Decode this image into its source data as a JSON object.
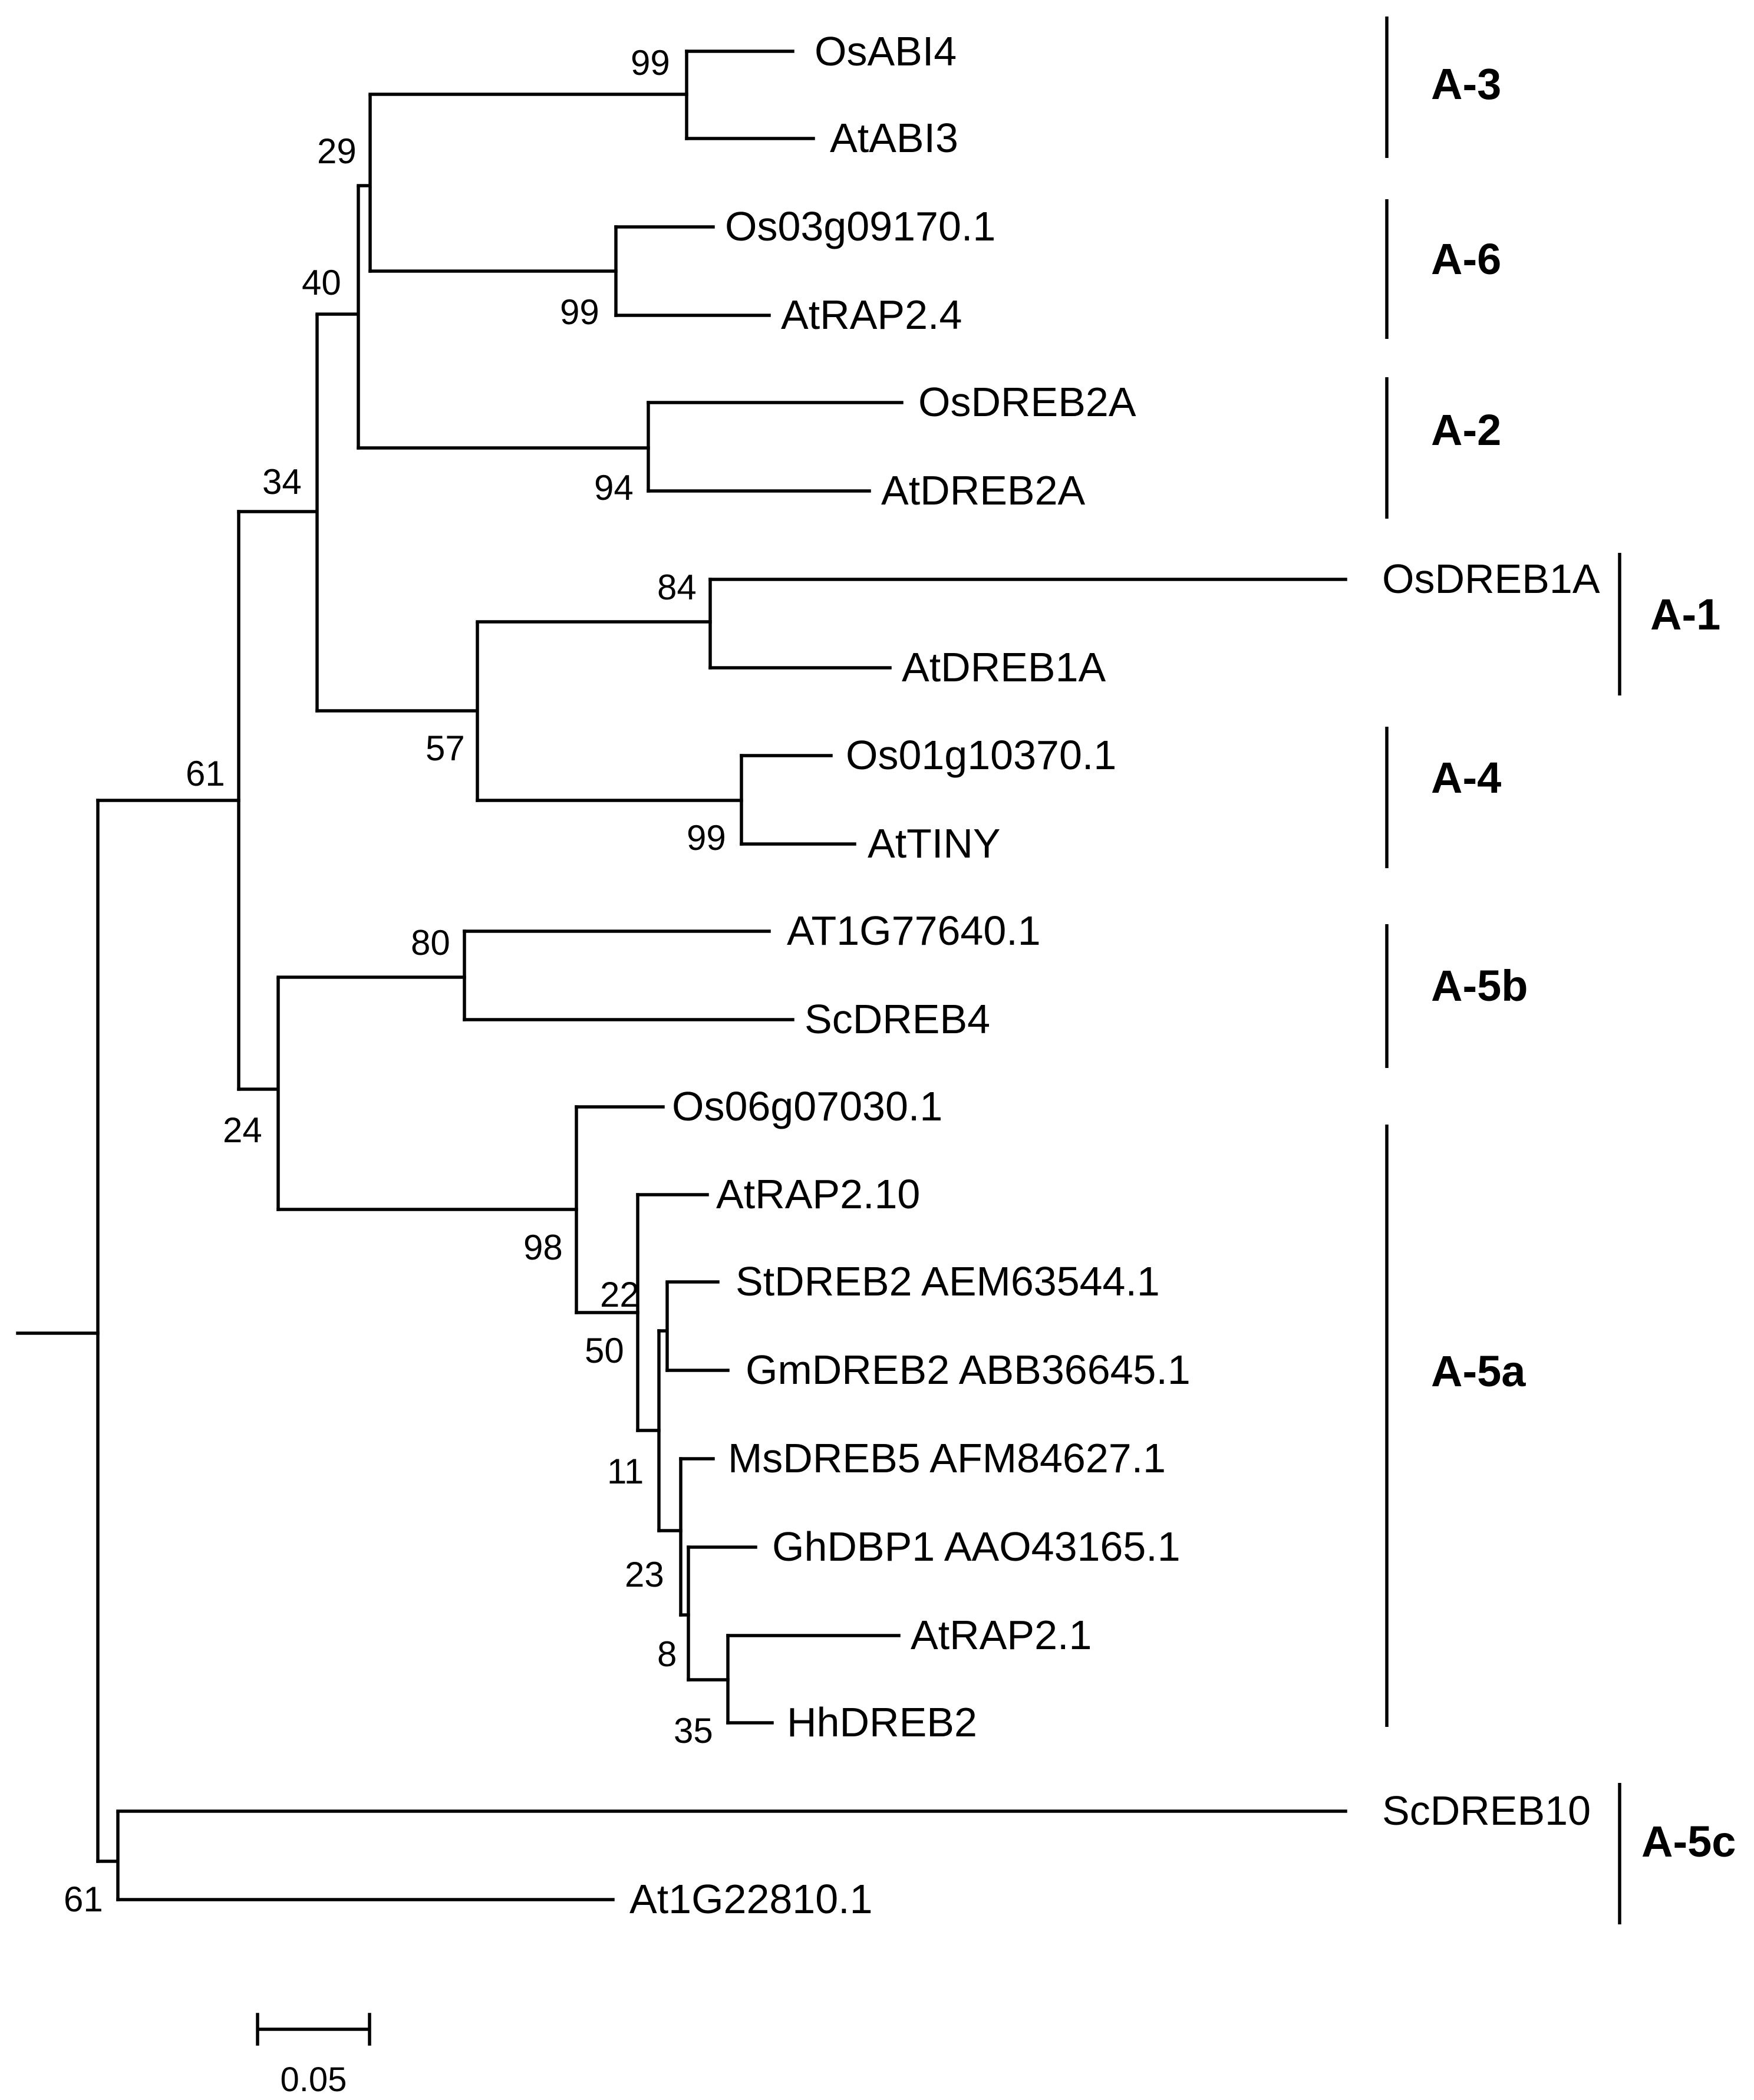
{
  "figure": {
    "type": "phylogenetic-tree",
    "scale_bar_label": "0.05",
    "highlight_color": "#ff0000"
  },
  "leaves": [
    "OsABI4",
    "AtABI3",
    "Os03g09170.1",
    "AtRAP2.4",
    "OsDREB2A",
    "AtDREB2A",
    "OsDREB1A",
    "AtDREB1A",
    "Os01g10370.1",
    "AtTINY",
    "AT1G77640.1",
    "ScDREB4",
    "Os06g07030.1",
    "AtRAP2.10",
    "StDREB2 AEM63544.1",
    "GmDREB2 ABB36645.1",
    "MsDREB5 AFM84627.1",
    "GhDBP1 AAO43165.1",
    "AtRAP2.1",
    "HhDREB2",
    "ScDREB10",
    "At1G22810.1"
  ],
  "bootstrap": [
    "99",
    "29",
    "99",
    "40",
    "94",
    "34",
    "84",
    "57",
    "99",
    "61",
    "80",
    "24",
    "98",
    "22",
    "50",
    "11",
    "23",
    "8",
    "35",
    "61"
  ],
  "groups": [
    "A-3",
    "A-6",
    "A-2",
    "A-1",
    "A-4",
    "A-5b",
    "A-5a",
    "A-5c"
  ]
}
